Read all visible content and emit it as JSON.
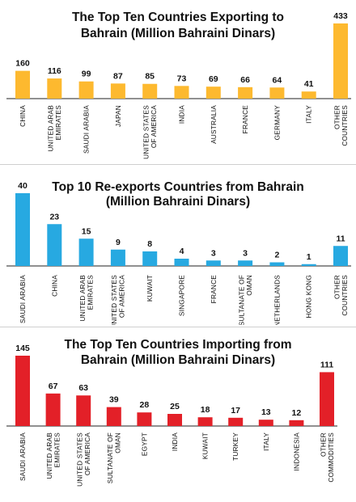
{
  "chart_data": [
    {
      "type": "bar",
      "title": [
        "The Top Ten Countries Exporting to",
        "Bahrain (Million Bahraini Dinars)"
      ],
      "color": "#FDB92F",
      "categories": [
        [
          "CHINA"
        ],
        [
          "UNITED ARAB",
          "EMIRATES"
        ],
        [
          "SAUDI ARABIA"
        ],
        [
          "JAPAN"
        ],
        [
          "UNITED STATES",
          "OF AMERICA"
        ],
        [
          "INDIA"
        ],
        [
          "AUSTRALIA"
        ],
        [
          "FRANCE"
        ],
        [
          "GERMANY"
        ],
        [
          "ITALY"
        ],
        [
          "OTHER",
          "COUNTRIES"
        ]
      ],
      "values": [
        160,
        116,
        99,
        87,
        85,
        73,
        69,
        66,
        64,
        41,
        433
      ]
    },
    {
      "type": "bar",
      "title": [
        "Top 10 Re-exports Countries from Bahrain",
        "(Million Bahraini Dinars)"
      ],
      "color": "#27A9E1",
      "categories": [
        [
          "SAUDI ARABIA"
        ],
        [
          "CHINA"
        ],
        [
          "UNITED ARAB",
          "EMIRATES"
        ],
        [
          "UNITED STATES",
          "OF AMERICA"
        ],
        [
          "KUWAIT"
        ],
        [
          "SINGAPORE"
        ],
        [
          "FRANCE"
        ],
        [
          "SULTANATE OF",
          "OMAN"
        ],
        [
          "NETHERLANDS"
        ],
        [
          "HONG KONG"
        ],
        [
          "OTHER",
          "COUNTRIES"
        ]
      ],
      "values": [
        40,
        23,
        15,
        9,
        8,
        4,
        3,
        3,
        2,
        1,
        11
      ]
    },
    {
      "type": "bar",
      "title": [
        "The Top Ten Countries Importing from",
        "Bahrain (Million Bahraini Dinars)"
      ],
      "color": "#E32028",
      "categories": [
        [
          "SAUDI ARABIA"
        ],
        [
          "UNITED ARAB",
          "EMIRATES"
        ],
        [
          "UNITED STATES",
          "OF AMERICA"
        ],
        [
          "SULTANATE OF",
          "OMAN"
        ],
        [
          "EGYPT"
        ],
        [
          "INDIA"
        ],
        [
          "KUWAIT"
        ],
        [
          "TURKEY"
        ],
        [
          "ITALY"
        ],
        [
          "INDONESIA"
        ],
        [
          "OTHER",
          "COMMODITIES"
        ]
      ],
      "values": [
        145,
        67,
        63,
        39,
        28,
        25,
        18,
        17,
        13,
        12,
        111
      ]
    }
  ]
}
